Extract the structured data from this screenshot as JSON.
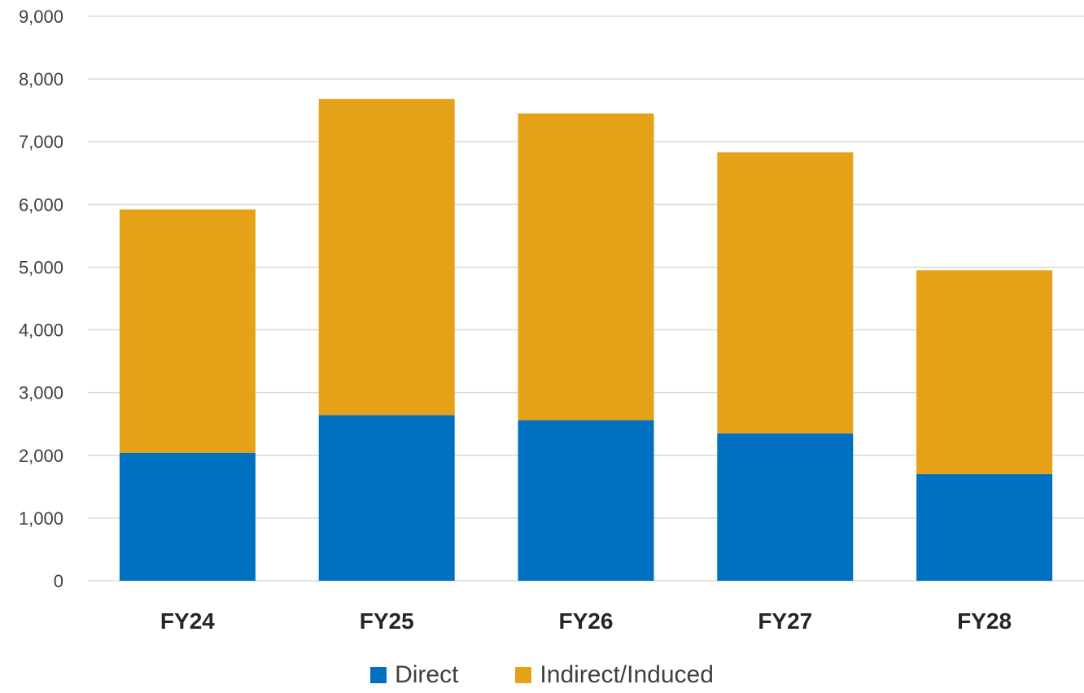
{
  "chart_data": {
    "type": "bar",
    "stacked": true,
    "title": "",
    "xlabel": "",
    "ylabel": "",
    "categories": [
      "FY24",
      "FY25",
      "FY26",
      "FY27",
      "FY28"
    ],
    "series": [
      {
        "name": "Direct",
        "values": [
          2040,
          2640,
          2560,
          2350,
          1700
        ],
        "color": "#0070C0"
      },
      {
        "name": "Indirect/Induced",
        "values": [
          3880,
          5040,
          4890,
          4480,
          3250
        ],
        "color": "#E5A117"
      }
    ],
    "ylim": [
      0,
      9000
    ],
    "yticks": [
      0,
      1000,
      2000,
      3000,
      4000,
      5000,
      6000,
      7000,
      8000,
      9000
    ],
    "ytick_labels": [
      "0",
      "1,000",
      "2,000",
      "3,000",
      "4,000",
      "5,000",
      "6,000",
      "7,000",
      "8,000",
      "9,000"
    ],
    "grid": true,
    "legend_position": "bottom"
  }
}
